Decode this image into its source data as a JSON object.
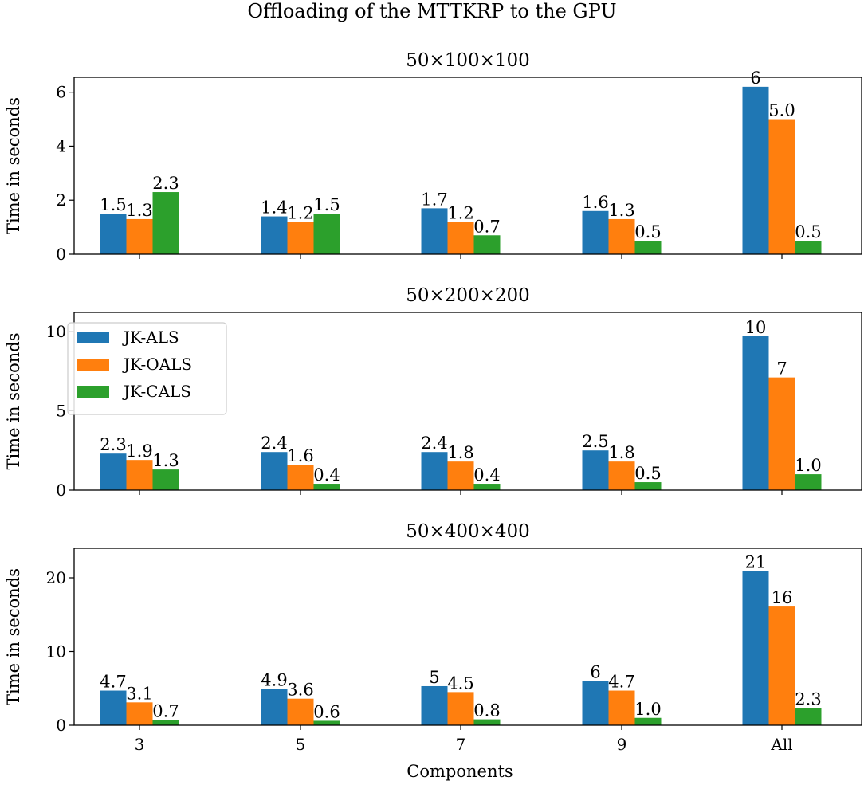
{
  "colors": {
    "JK-ALS": "#1f77b4",
    "JK-OALS": "#ff7f0e",
    "JK-CALS": "#2ca02c"
  },
  "chart_data": {
    "type": "bar",
    "title": "Offloading of the MTTKRP to the GPU",
    "xlabel": "Components",
    "categories": [
      "3",
      "5",
      "7",
      "9",
      "All"
    ],
    "legend": {
      "placement": "upper-left of middle panel",
      "entries": [
        "JK-ALS",
        "JK-OALS",
        "JK-CALS"
      ]
    },
    "panels": [
      {
        "title": "50×100×100",
        "ylabel": "Time in seconds",
        "ylim": [
          0,
          6.55
        ],
        "yticks": [
          0,
          2,
          4,
          6
        ],
        "series": [
          {
            "name": "JK-ALS",
            "values": [
              1.5,
              1.4,
              1.7,
              1.6,
              6.2
            ],
            "labels": [
              "1.5",
              "1.4",
              "1.7",
              "1.6",
              "6"
            ]
          },
          {
            "name": "JK-OALS",
            "values": [
              1.3,
              1.2,
              1.2,
              1.3,
              5.0
            ],
            "labels": [
              "1.3",
              "1.2",
              "1.2",
              "1.3",
              "5.0"
            ]
          },
          {
            "name": "JK-CALS",
            "values": [
              2.3,
              1.5,
              0.7,
              0.5,
              0.5
            ],
            "labels": [
              "2.3",
              "1.5",
              "0.7",
              "0.5",
              "0.5"
            ]
          }
        ]
      },
      {
        "title": "50×200×200",
        "ylabel": "Time in seconds",
        "ylim": [
          0,
          11.2
        ],
        "yticks": [
          0,
          5,
          10
        ],
        "series": [
          {
            "name": "JK-ALS",
            "values": [
              2.3,
              2.4,
              2.4,
              2.5,
              9.7
            ],
            "labels": [
              "2.3",
              "2.4",
              "2.4",
              "2.5",
              "10"
            ]
          },
          {
            "name": "JK-OALS",
            "values": [
              1.9,
              1.6,
              1.8,
              1.8,
              7.1
            ],
            "labels": [
              "1.9",
              "1.6",
              "1.8",
              "1.8",
              "7"
            ]
          },
          {
            "name": "JK-CALS",
            "values": [
              1.3,
              0.4,
              0.4,
              0.5,
              1.0
            ],
            "labels": [
              "1.3",
              "0.4",
              "0.4",
              "0.5",
              "1.0"
            ]
          }
        ]
      },
      {
        "title": "50×400×400",
        "ylabel": "Time in seconds",
        "ylim": [
          0,
          24
        ],
        "yticks": [
          0,
          10,
          20
        ],
        "series": [
          {
            "name": "JK-ALS",
            "values": [
              4.7,
              4.9,
              5.3,
              6.0,
              20.9
            ],
            "labels": [
              "4.7",
              "4.9",
              "5",
              "6",
              "21"
            ]
          },
          {
            "name": "JK-OALS",
            "values": [
              3.1,
              3.6,
              4.5,
              4.7,
              16.1
            ],
            "labels": [
              "3.1",
              "3.6",
              "4.5",
              "4.7",
              "16"
            ]
          },
          {
            "name": "JK-CALS",
            "values": [
              0.7,
              0.6,
              0.8,
              1.0,
              2.3
            ],
            "labels": [
              "0.7",
              "0.6",
              "0.8",
              "1.0",
              "2.3"
            ]
          }
        ]
      }
    ]
  }
}
